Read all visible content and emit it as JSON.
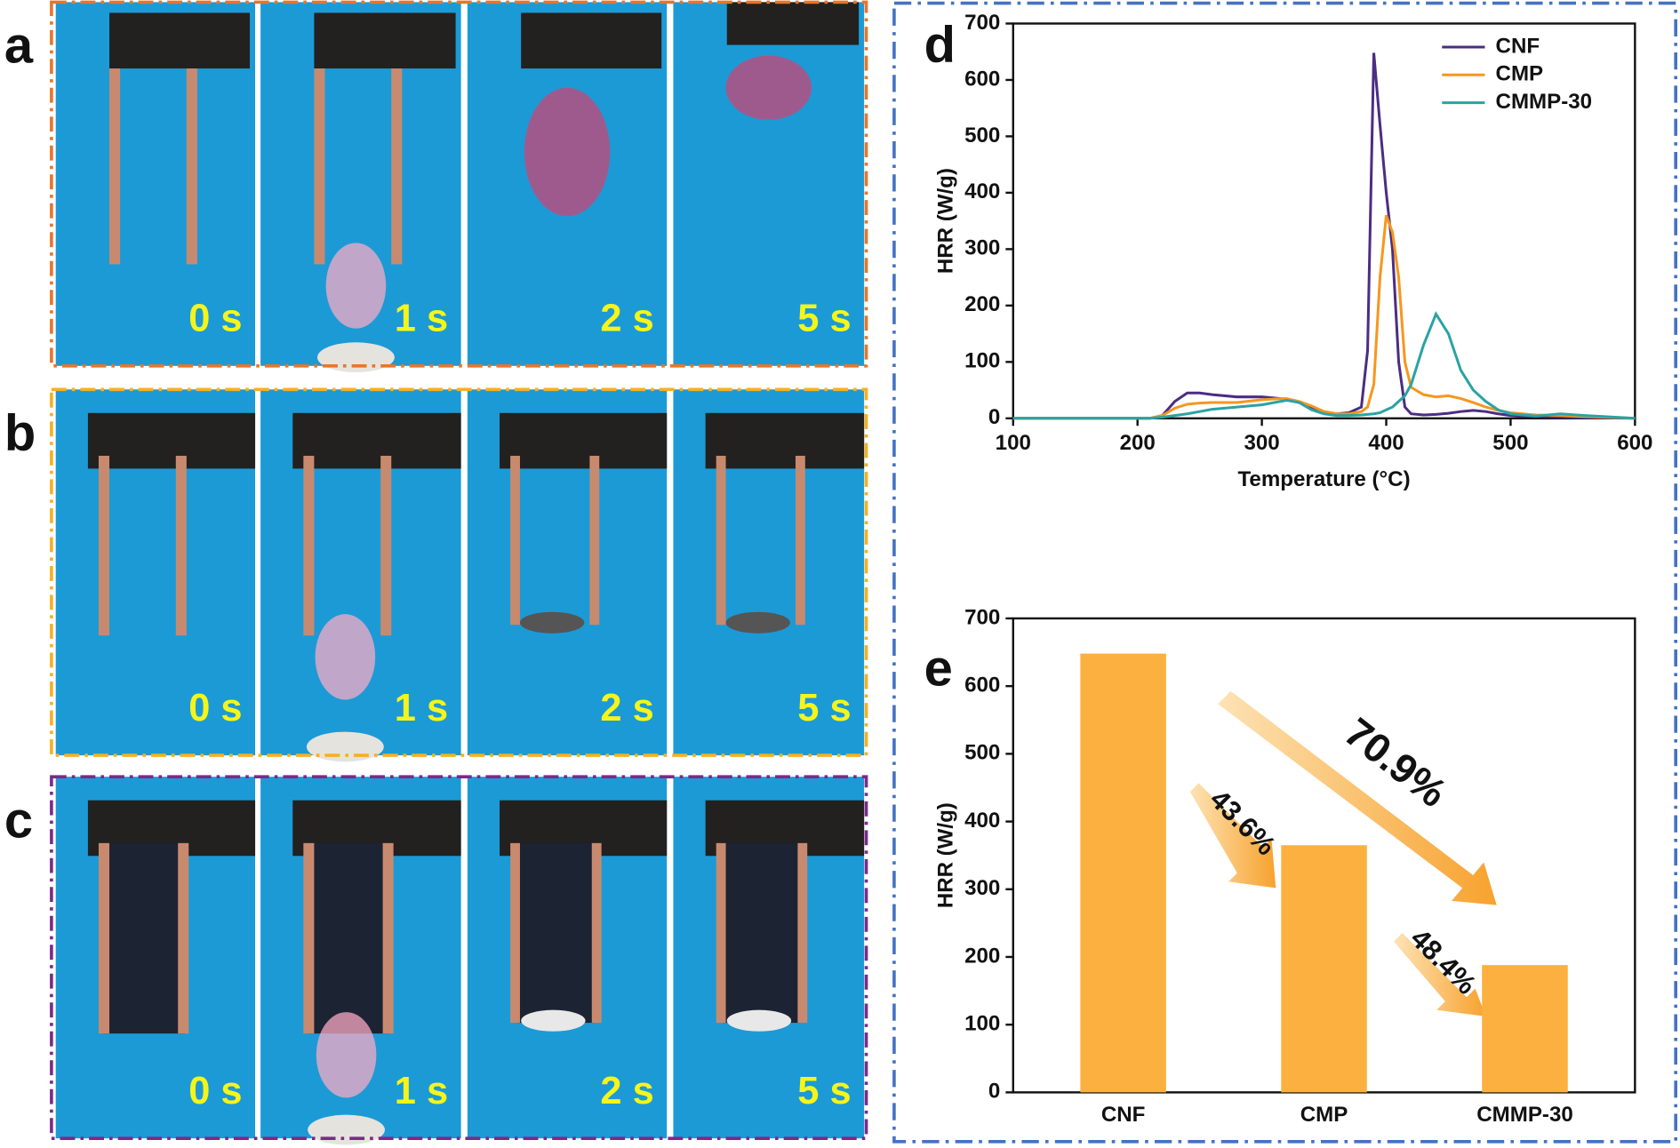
{
  "photo_panels": [
    {
      "label": "a",
      "times": [
        "0 s",
        "1 s",
        "2 s",
        "5 s"
      ]
    },
    {
      "label": "b",
      "times": [
        "0 s",
        "1 s",
        "2 s",
        "5 s"
      ]
    },
    {
      "label": "c",
      "times": [
        "0 s",
        "1 s",
        "2 s",
        "5 s"
      ]
    }
  ],
  "chart_data": [
    {
      "type": "line",
      "panel": "d",
      "xlabel": "Temperature (°C)",
      "ylabel": "HRR (W/g)",
      "x": [
        100,
        210,
        220,
        230,
        240,
        250,
        260,
        280,
        300,
        315,
        320,
        330,
        340,
        350,
        360,
        370,
        380,
        385,
        390,
        395,
        400,
        405,
        410,
        415,
        420,
        430,
        440,
        450,
        460,
        470,
        480,
        490,
        500,
        520,
        540,
        560,
        600
      ],
      "series": [
        {
          "name": "CNF",
          "color": "#4b2d83",
          "values": [
            0,
            0,
            5,
            30,
            45,
            45,
            42,
            38,
            38,
            35,
            33,
            28,
            20,
            12,
            8,
            10,
            20,
            120,
            648,
            520,
            400,
            300,
            100,
            20,
            8,
            6,
            7,
            9,
            12,
            14,
            12,
            8,
            5,
            3,
            2,
            1,
            0
          ]
        },
        {
          "name": "CMP",
          "color": "#f7961e",
          "values": [
            0,
            0,
            5,
            18,
            25,
            27,
            28,
            28,
            33,
            35,
            35,
            30,
            22,
            12,
            8,
            8,
            12,
            20,
            60,
            250,
            360,
            330,
            250,
            100,
            55,
            42,
            38,
            40,
            35,
            28,
            20,
            14,
            10,
            6,
            5,
            3,
            0
          ]
        },
        {
          "name": "CMMP-30",
          "color": "#2aa3a3",
          "values": [
            0,
            0,
            2,
            5,
            8,
            12,
            16,
            20,
            24,
            30,
            32,
            28,
            15,
            8,
            5,
            5,
            6,
            7,
            8,
            10,
            15,
            20,
            30,
            40,
            60,
            130,
            185,
            150,
            85,
            50,
            30,
            15,
            8,
            4,
            8,
            5,
            0
          ]
        }
      ],
      "xlim": [
        100,
        600
      ],
      "xticks": [
        100,
        200,
        300,
        400,
        500,
        600
      ],
      "ylim": [
        0,
        700
      ],
      "yticks": [
        0,
        100,
        200,
        300,
        400,
        500,
        600,
        700
      ],
      "legend": "upper right"
    },
    {
      "type": "bar",
      "panel": "e",
      "ylabel": "HRR (W/g)",
      "categories": [
        "CNF",
        "CMP",
        "CMMP-30"
      ],
      "values": [
        648,
        365,
        188
      ],
      "color": "#fbb040",
      "ylim": [
        0,
        700
      ],
      "yticks": [
        0,
        100,
        200,
        300,
        400,
        500,
        600,
        700
      ],
      "annotations": [
        "43.6%",
        "48.4%",
        "70.9%"
      ]
    }
  ]
}
